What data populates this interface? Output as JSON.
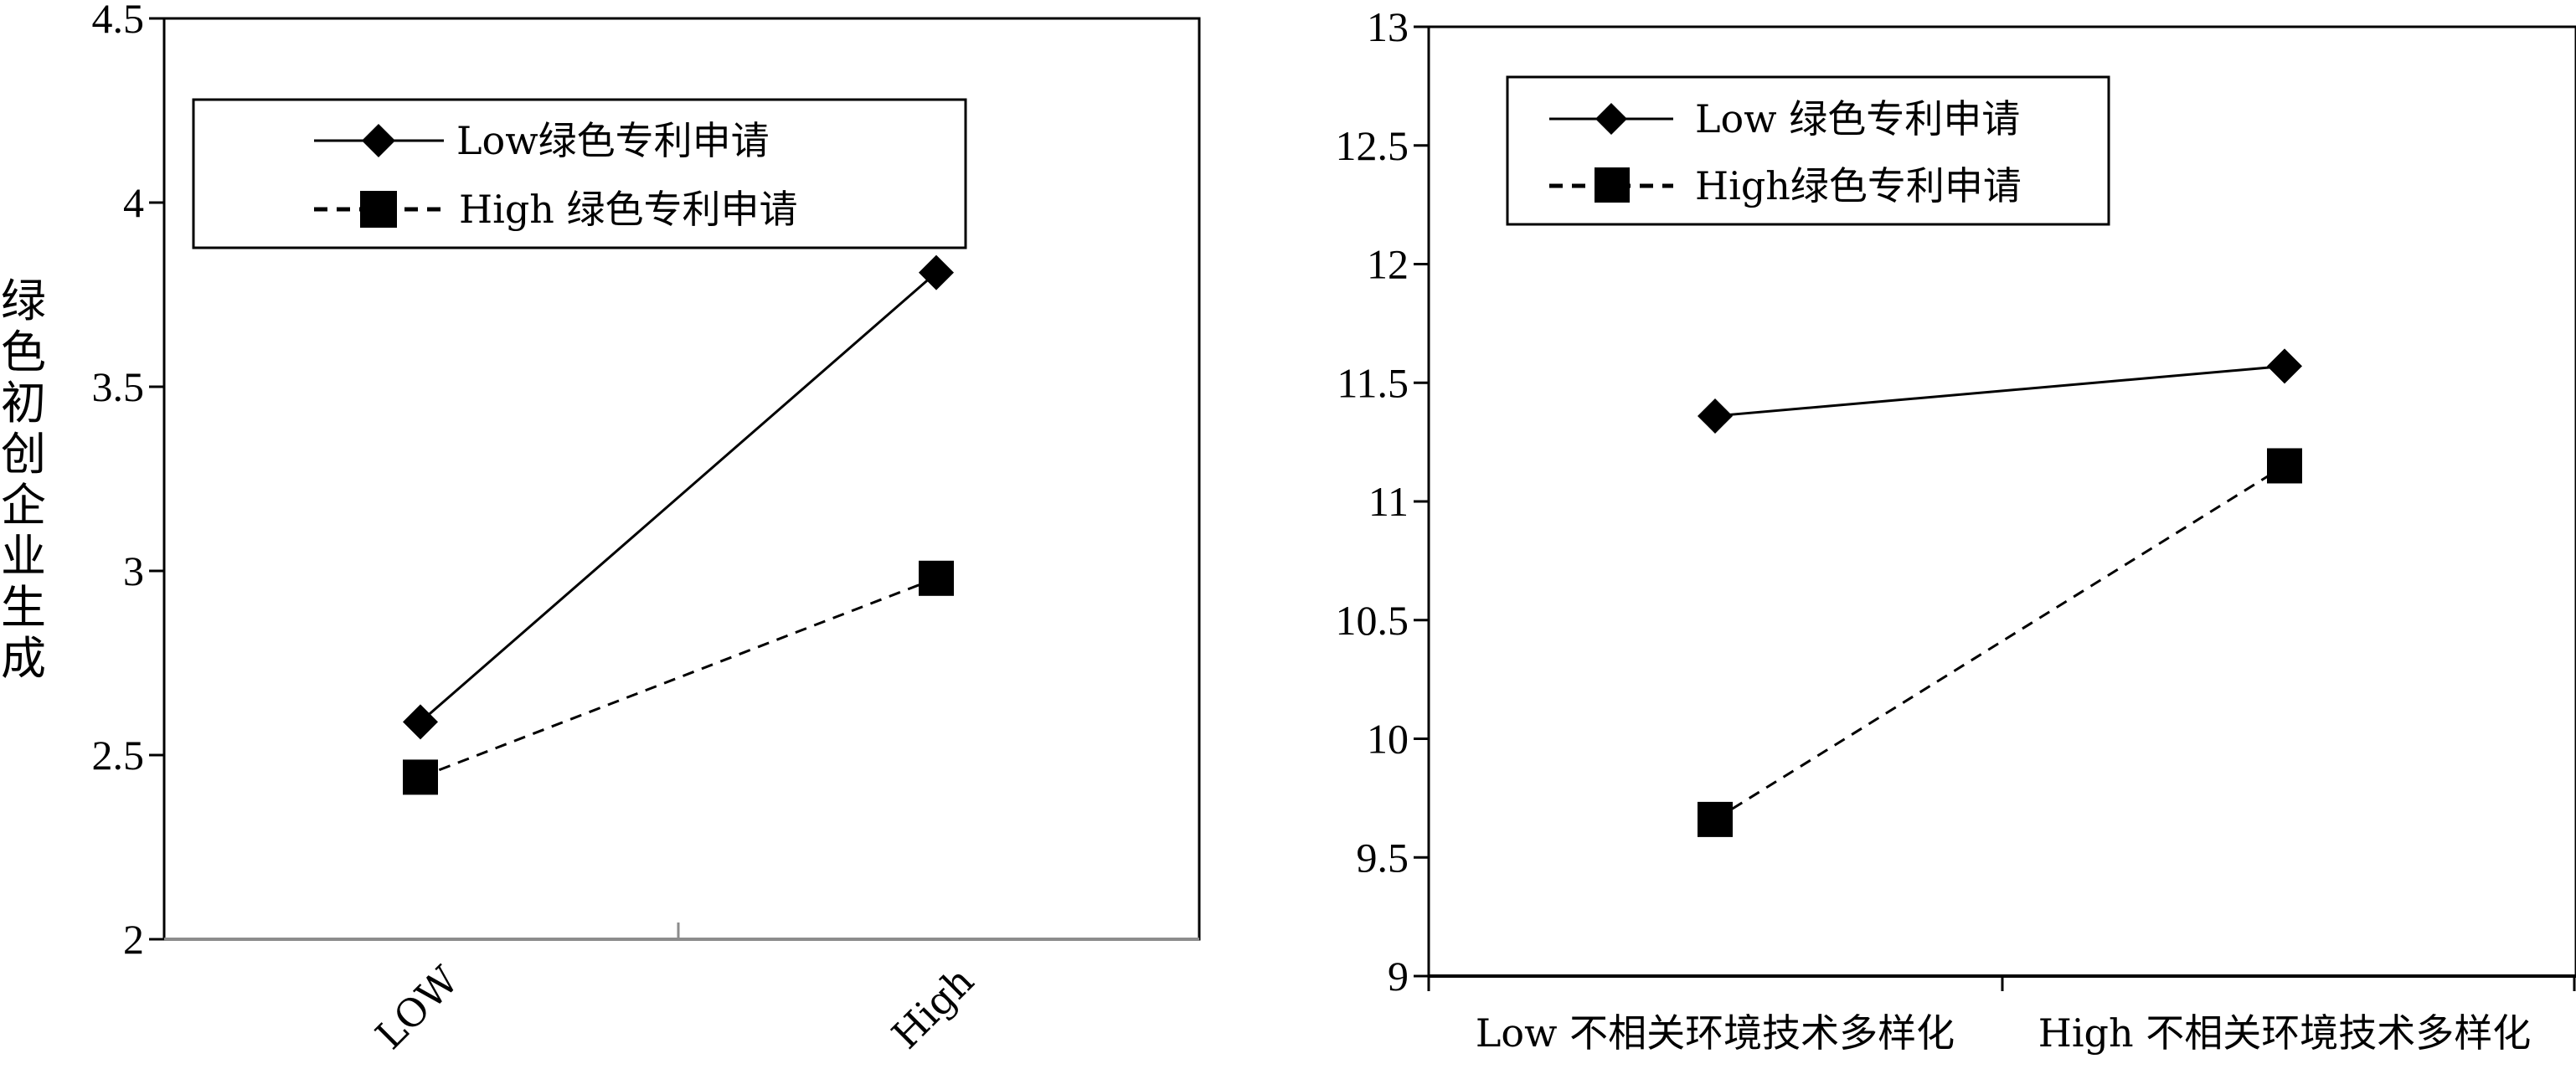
{
  "chart_data": [
    {
      "type": "line",
      "xlabel": "",
      "ylabel": "绿色初创企业生成",
      "ylim": [
        2,
        4.5
      ],
      "yticks": [
        "2",
        "2.5",
        "3",
        "3.5",
        "4",
        "4.5"
      ],
      "categories": [
        "LOW",
        "High"
      ],
      "grid": false,
      "legend_position": "top",
      "series": [
        {
          "name": "Low绿色专利申请",
          "values": [
            2.59,
            3.81
          ],
          "marker": "diamond",
          "line": "solid"
        },
        {
          "name": "High 绿色专利申请",
          "values": [
            2.44,
            2.98
          ],
          "marker": "square",
          "line": "dashed"
        }
      ]
    },
    {
      "type": "line",
      "xlabel": "",
      "ylabel": "",
      "ylim": [
        9,
        13
      ],
      "yticks": [
        "9",
        "9.5",
        "10",
        "10.5",
        "11",
        "11.5",
        "12",
        "12.5",
        "13"
      ],
      "categories": [
        "Low 不相关环境技术多样化",
        "High 不相关环境技术多样化"
      ],
      "grid": false,
      "legend_position": "top-left",
      "series": [
        {
          "name": "Low 绿色专利申请",
          "values": [
            11.36,
            11.57
          ],
          "marker": "diamond",
          "line": "solid"
        },
        {
          "name": "High绿色专利申请",
          "values": [
            9.66,
            11.15
          ],
          "marker": "square",
          "line": "dashed"
        }
      ]
    }
  ],
  "colors": {
    "line": "#000000",
    "axis_gray": "#8c8c8c"
  }
}
